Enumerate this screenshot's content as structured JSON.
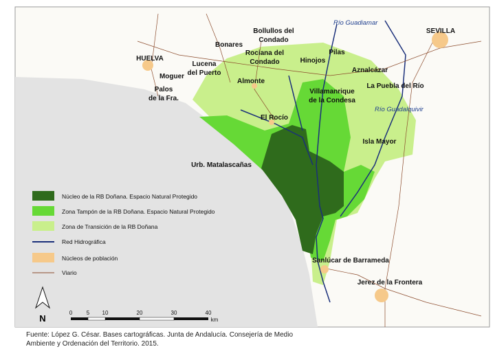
{
  "map": {
    "places": [
      {
        "lines": [
          "HUELVA"
        ]
      },
      {
        "lines": [
          "Moguer"
        ]
      },
      {
        "lines": [
          "Palos",
          "de la Fra."
        ]
      },
      {
        "lines": [
          "Lucena",
          "del Puerto"
        ]
      },
      {
        "lines": [
          "Bonares"
        ]
      },
      {
        "lines": [
          "Bollullos del",
          "Condado"
        ]
      },
      {
        "lines": [
          "Rociana del",
          "Condado"
        ]
      },
      {
        "lines": [
          "Almonte"
        ]
      },
      {
        "lines": [
          "Hinojos"
        ]
      },
      {
        "lines": [
          "Pilas"
        ]
      },
      {
        "lines": [
          "Aznalcázar"
        ]
      },
      {
        "lines": [
          "La Puebla del Río"
        ]
      },
      {
        "lines": [
          "Villamanrique",
          "de la Condesa"
        ]
      },
      {
        "lines": [
          "El Rocío"
        ]
      },
      {
        "lines": [
          "Isla Mayor"
        ]
      },
      {
        "lines": [
          "Urb. Matalascañas"
        ]
      },
      {
        "lines": [
          "Sanlúcar de Barrameda"
        ]
      },
      {
        "lines": [
          "Jerez de la Frontera"
        ]
      },
      {
        "lines": [
          "SEVILLA"
        ]
      }
    ],
    "rivers": [
      "Río Guadiamar",
      "Río Guadalquivir"
    ],
    "legend": [
      "Núcleo de la RB Doñana. Espacio Natural Protegido",
      "Zona Tampón de la RB Doñana. Espacio Natural Protegido",
      "Zona de Transición de la RB Doñana",
      "Red Hidrográfica",
      "Núcleos de población",
      "Viario"
    ],
    "north": "N",
    "scale": {
      "ticks": [
        "0",
        "5",
        "10",
        "20",
        "30",
        "40"
      ],
      "unit": "km"
    }
  },
  "source": [
    "Fuente: López G. César. Bases cartográficas. Junta de Andalucía. Consejería de Medio",
    "Ambiente y Ordenación del Territorio. 2015."
  ]
}
